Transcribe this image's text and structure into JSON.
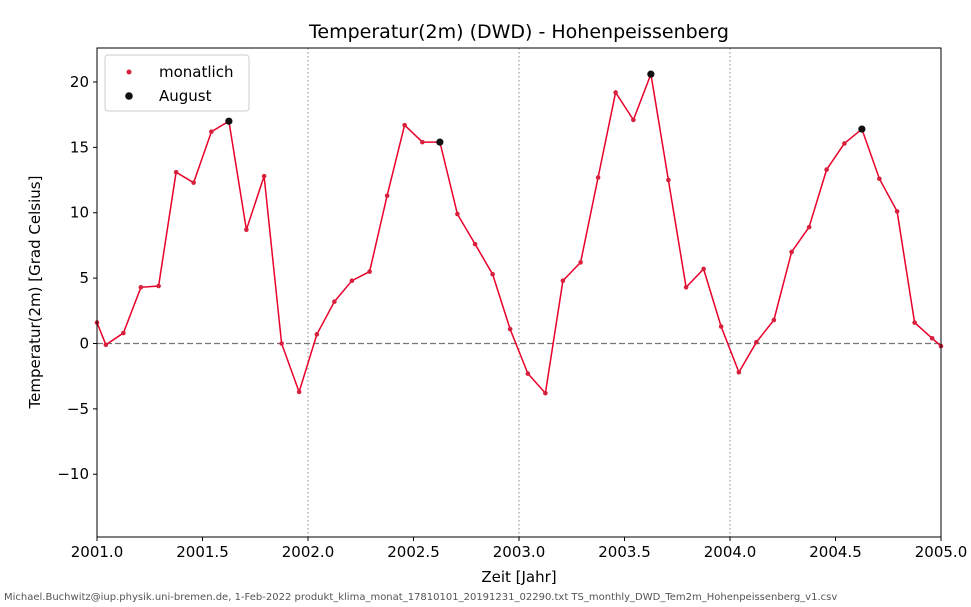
{
  "chart_data": {
    "type": "line",
    "title": "Temperatur(2m) (DWD) - Hohenpeissenberg",
    "xlabel": "Zeit [Jahr]",
    "ylabel": "Temperatur(2m) [Grad Celsius]",
    "xlim": [
      2001.0,
      2005.0
    ],
    "ylim": [
      -14.8,
      22.6
    ],
    "xticks": [
      2001.0,
      2001.5,
      2002.0,
      2002.5,
      2003.0,
      2003.5,
      2004.0,
      2004.5,
      2005.0
    ],
    "xtick_labels": [
      "2001.0",
      "2001.5",
      "2002.0",
      "2002.5",
      "2003.0",
      "2003.5",
      "2004.0",
      "2004.5",
      "2005.0"
    ],
    "yticks": [
      -10,
      -5,
      0,
      5,
      10,
      15,
      20
    ],
    "ytick_labels": [
      "−10",
      "−5",
      "0",
      "5",
      "10",
      "15",
      "20"
    ],
    "vlines": [
      2002.0,
      2003.0,
      2004.0
    ],
    "hline": 0,
    "legend_position": "top-left",
    "colors": {
      "monthly": "#e8002a",
      "markers": "#d6203c",
      "august": "#111111"
    },
    "series": [
      {
        "name": "monatlich",
        "x": [
          2001.0,
          2001.042,
          2001.125,
          2001.208,
          2001.292,
          2001.375,
          2001.458,
          2001.542,
          2001.625,
          2001.708,
          2001.792,
          2001.875,
          2001.958,
          2002.042,
          2002.125,
          2002.208,
          2002.292,
          2002.375,
          2002.458,
          2002.542,
          2002.625,
          2002.708,
          2002.792,
          2002.875,
          2002.958,
          2003.042,
          2003.125,
          2003.208,
          2003.292,
          2003.375,
          2003.458,
          2003.542,
          2003.625,
          2003.708,
          2003.792,
          2003.875,
          2003.958,
          2004.042,
          2004.125,
          2004.208,
          2004.292,
          2004.375,
          2004.458,
          2004.542,
          2004.625,
          2004.708,
          2004.792,
          2004.875,
          2004.958,
          2005.0
        ],
        "y": [
          1.6,
          -0.1,
          0.8,
          4.3,
          4.4,
          13.1,
          12.3,
          16.2,
          17.0,
          8.7,
          12.8,
          0.0,
          -3.7,
          0.7,
          3.2,
          4.8,
          5.5,
          11.3,
          16.7,
          15.4,
          15.4,
          9.9,
          7.6,
          5.3,
          1.1,
          -2.3,
          -3.8,
          4.8,
          6.2,
          12.7,
          19.2,
          17.1,
          20.6,
          12.5,
          4.3,
          5.7,
          1.3,
          -2.2,
          0.1,
          1.8,
          7.0,
          8.9,
          13.3,
          15.3,
          16.4,
          12.6,
          10.1,
          1.6,
          0.4,
          -0.2
        ]
      },
      {
        "name": "August",
        "x": [
          2001.625,
          2002.625,
          2003.625,
          2004.625
        ],
        "y": [
          17.0,
          15.4,
          20.6,
          16.4
        ]
      }
    ]
  },
  "footer": "Michael.Buchwitz@iup.physik.uni-bremen.de, 1-Feb-2022 produkt_klima_monat_17810101_20191231_02290.txt TS_monthly_DWD_Tem2m_Hohenpeissenberg_v1.csv"
}
